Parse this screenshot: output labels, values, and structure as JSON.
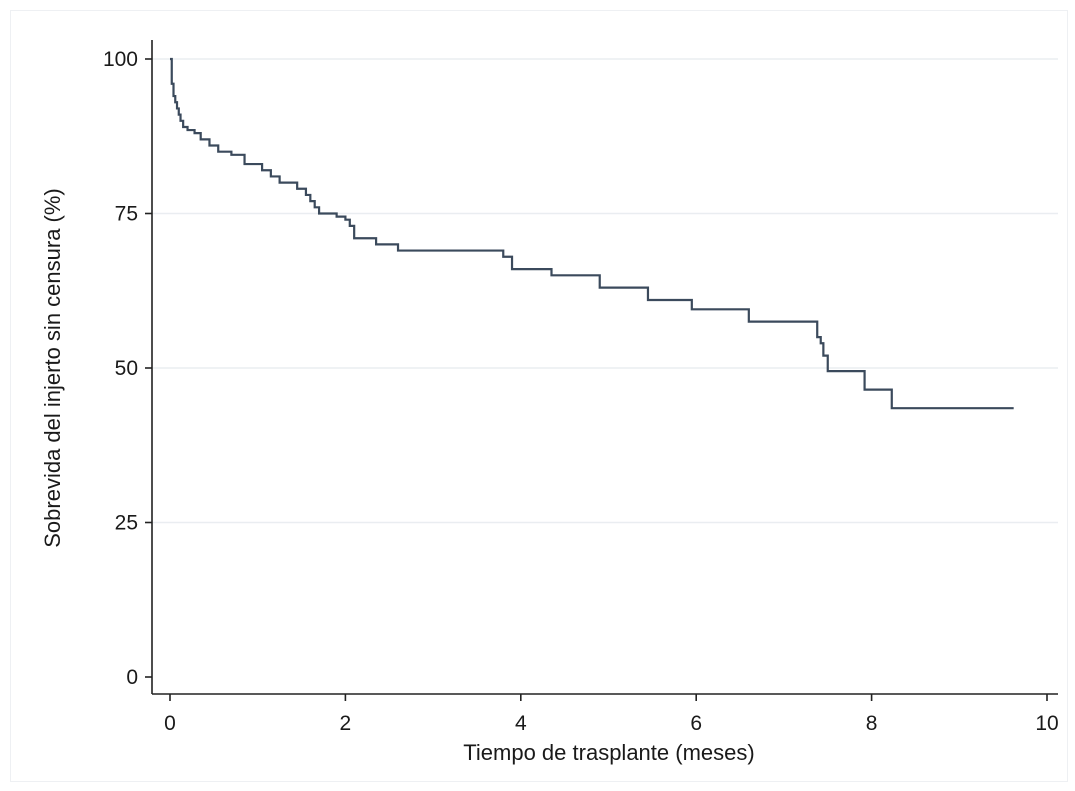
{
  "chart_data": {
    "type": "line",
    "title": "",
    "xlabel": "Tiempo de trasplante (meses)",
    "ylabel": "Sobrevida del injerto sin censura (%)",
    "xlim": [
      0,
      10
    ],
    "ylim": [
      0,
      100
    ],
    "xticks": [
      0,
      2,
      4,
      6,
      8,
      10
    ],
    "yticks": [
      0,
      25,
      50,
      75,
      100
    ],
    "xtick_labels": [
      "0",
      "2",
      "4",
      "6",
      "8",
      "10"
    ],
    "ytick_labels": [
      "0",
      "25",
      "50",
      "75",
      "100"
    ],
    "grid": "horizontal",
    "legend": "none",
    "step": true,
    "series": [
      {
        "color": "#3b4a5c",
        "x": [
          0,
          0.02,
          0.04,
          0.06,
          0.08,
          0.1,
          0.12,
          0.15,
          0.2,
          0.28,
          0.35,
          0.45,
          0.55,
          0.7,
          0.85,
          1.05,
          1.15,
          1.25,
          1.45,
          1.55,
          1.6,
          1.65,
          1.7,
          1.9,
          2.0,
          2.05,
          2.1,
          2.35,
          2.6,
          3.8,
          3.9,
          4.35,
          4.9,
          5.45,
          5.95,
          6.6,
          7.38,
          7.42,
          7.45,
          7.5,
          7.92,
          8.23,
          9.62
        ],
        "y": [
          100,
          96,
          94,
          93,
          92,
          91,
          90,
          89,
          88.5,
          88,
          87,
          86,
          85,
          84.5,
          83,
          82,
          81,
          80,
          79,
          78,
          77,
          76,
          75,
          74.5,
          74,
          73,
          71,
          70,
          69,
          68,
          66,
          65,
          63,
          61,
          59.5,
          57.5,
          55,
          54,
          52,
          49.5,
          46.5,
          43.5,
          43.5
        ]
      }
    ]
  }
}
